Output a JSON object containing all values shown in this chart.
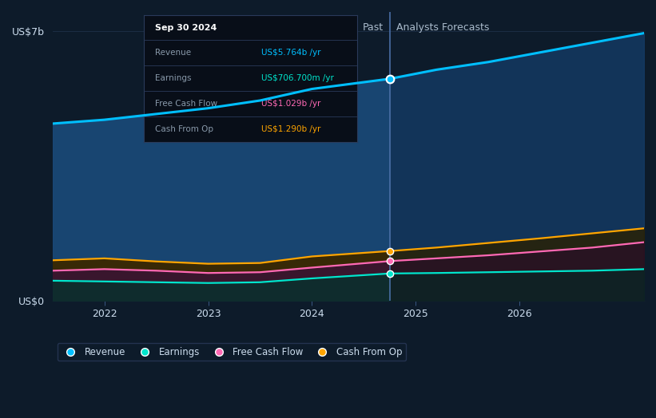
{
  "bg_color": "#0d1b2a",
  "plot_bg_color": "#0d1b2a",
  "grid_color": "#1e3048",
  "divider_color": "#4a6fa5",
  "past_x": 2024.75,
  "x_min": 2021.5,
  "x_max": 2027.2,
  "y_min": 0,
  "y_max": 7.5,
  "xticks": [
    2022,
    2023,
    2024,
    2025,
    2026
  ],
  "revenue_past_x": [
    2021.5,
    2022.0,
    2022.5,
    2023.0,
    2023.5,
    2024.0,
    2024.75
  ],
  "revenue_past_y": [
    4.6,
    4.7,
    4.85,
    5.0,
    5.2,
    5.5,
    5.764
  ],
  "revenue_future_x": [
    2024.75,
    2025.2,
    2025.7,
    2026.2,
    2026.7,
    2027.2
  ],
  "revenue_future_y": [
    5.764,
    6.0,
    6.2,
    6.45,
    6.7,
    6.95
  ],
  "earnings_past_x": [
    2021.5,
    2022.0,
    2022.5,
    2023.0,
    2023.5,
    2024.0,
    2024.75
  ],
  "earnings_past_y": [
    0.52,
    0.5,
    0.48,
    0.46,
    0.48,
    0.58,
    0.707
  ],
  "earnings_future_x": [
    2024.75,
    2025.2,
    2025.7,
    2026.2,
    2026.7,
    2027.2
  ],
  "earnings_future_y": [
    0.707,
    0.72,
    0.74,
    0.76,
    0.78,
    0.82
  ],
  "fcf_past_x": [
    2021.5,
    2022.0,
    2022.5,
    2023.0,
    2023.5,
    2024.0,
    2024.75
  ],
  "fcf_past_y": [
    0.78,
    0.82,
    0.78,
    0.72,
    0.74,
    0.86,
    1.029
  ],
  "fcf_future_x": [
    2024.75,
    2025.2,
    2025.7,
    2026.2,
    2026.7,
    2027.2
  ],
  "fcf_future_y": [
    1.029,
    1.1,
    1.18,
    1.28,
    1.38,
    1.52
  ],
  "cashop_past_x": [
    2021.5,
    2022.0,
    2022.5,
    2023.0,
    2023.5,
    2024.0,
    2024.75
  ],
  "cashop_past_y": [
    1.05,
    1.1,
    1.02,
    0.96,
    0.98,
    1.15,
    1.29
  ],
  "cashop_future_x": [
    2024.75,
    2025.2,
    2025.7,
    2026.2,
    2026.7,
    2027.2
  ],
  "cashop_future_y": [
    1.29,
    1.38,
    1.5,
    1.62,
    1.75,
    1.88
  ],
  "revenue_color": "#00bfff",
  "earnings_color": "#00e5cc",
  "fcf_color": "#ff69b4",
  "cashop_color": "#ffa500",
  "tooltip_bg": "#080e18",
  "tooltip_border": "#2a3a5a",
  "past_label_color": "#aabbcc",
  "forecast_label_color": "#aabbcc",
  "text_color": "#ccddee",
  "legend_bg": "#0d1b2a",
  "legend_border": "#2a3a5a",
  "tooltip_rows": [
    {
      "label": "Sep 30 2024",
      "value": "",
      "is_header": true
    },
    {
      "label": "Revenue",
      "value": "US$5.764b /yr",
      "is_header": false
    },
    {
      "label": "Earnings",
      "value": "US$706.700m /yr",
      "is_header": false
    },
    {
      "label": "Free Cash Flow",
      "value": "US$1.029b /yr",
      "is_header": false
    },
    {
      "label": "Cash From Op",
      "value": "US$1.290b /yr",
      "is_header": false
    }
  ],
  "tooltip_value_colors": [
    "#ffffff",
    "#00bfff",
    "#00e5cc",
    "#ff69b4",
    "#ffa500"
  ]
}
